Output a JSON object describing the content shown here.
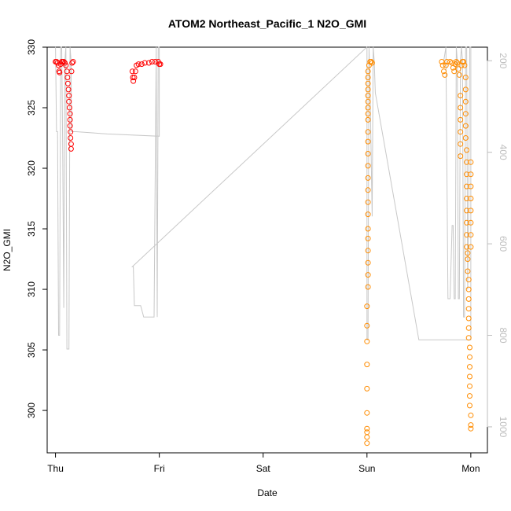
{
  "chart_data": {
    "type": "scatter",
    "title": "ATOM2 Northeast_Pacific_1 N2O_GMI",
    "xlabel": "Date",
    "ylabel": "N2O_GMI",
    "x_ticks": [
      "Thu",
      "Fri",
      "Sat",
      "Sun",
      "Mon"
    ],
    "xlim": [
      -0.08,
      4.16
    ],
    "ylim": [
      296.5,
      330
    ],
    "y_ticks": [
      300,
      305,
      310,
      315,
      320,
      325,
      330
    ],
    "y2_ticks": [
      200,
      400,
      600,
      800,
      1000
    ],
    "y2lim": [
      170.3,
      1056.8
    ],
    "grid": false,
    "series": [
      {
        "color": "#ff0000",
        "marker": "circle-open",
        "points": [
          [
            0.0,
            328.8
          ],
          [
            0.01,
            328.8
          ],
          [
            0.02,
            328.7
          ],
          [
            0.03,
            328.5
          ],
          [
            0.035,
            328.0
          ],
          [
            0.04,
            327.9
          ],
          [
            0.05,
            328.6
          ],
          [
            0.06,
            328.8
          ],
          [
            0.07,
            328.8
          ],
          [
            0.08,
            328.8
          ],
          [
            0.09,
            328.7
          ],
          [
            0.1,
            328.5
          ],
          [
            0.11,
            328.0
          ],
          [
            0.115,
            327.5
          ],
          [
            0.12,
            327.0
          ],
          [
            0.125,
            326.5
          ],
          [
            0.13,
            326.0
          ],
          [
            0.13,
            325.5
          ],
          [
            0.135,
            325.0
          ],
          [
            0.14,
            324.5
          ],
          [
            0.14,
            324.0
          ],
          [
            0.14,
            323.5
          ],
          [
            0.145,
            323.0
          ],
          [
            0.145,
            322.5
          ],
          [
            0.15,
            322.0
          ],
          [
            0.15,
            321.6
          ],
          [
            0.155,
            328.0
          ],
          [
            0.16,
            328.7
          ],
          [
            0.17,
            328.8
          ],
          [
            0.74,
            328.0
          ],
          [
            0.745,
            327.5
          ],
          [
            0.75,
            327.2
          ],
          [
            0.76,
            327.5
          ],
          [
            0.77,
            328.0
          ],
          [
            0.78,
            328.5
          ],
          [
            0.8,
            328.6
          ],
          [
            0.83,
            328.6
          ],
          [
            0.86,
            328.7
          ],
          [
            0.9,
            328.7
          ],
          [
            0.93,
            328.8
          ],
          [
            0.96,
            328.8
          ],
          [
            0.99,
            328.8
          ],
          [
            1.0,
            328.6
          ],
          [
            1.01,
            328.6
          ]
        ]
      },
      {
        "color": "#ff8c00",
        "marker": "circle-open",
        "points": [
          [
            3.0,
            297.3
          ],
          [
            3.0,
            297.8
          ],
          [
            3.0,
            298.2
          ],
          [
            3.0,
            298.5
          ],
          [
            3.0,
            299.8
          ],
          [
            3.0,
            301.8
          ],
          [
            3.0,
            303.8
          ],
          [
            3.0,
            305.7
          ],
          [
            3.0,
            307.0
          ],
          [
            3.0,
            308.6
          ],
          [
            3.01,
            310.2
          ],
          [
            3.01,
            311.2
          ],
          [
            3.01,
            312.2
          ],
          [
            3.01,
            313.2
          ],
          [
            3.01,
            314.2
          ],
          [
            3.01,
            315.0
          ],
          [
            3.01,
            316.2
          ],
          [
            3.01,
            317.2
          ],
          [
            3.01,
            318.2
          ],
          [
            3.01,
            319.2
          ],
          [
            3.01,
            320.2
          ],
          [
            3.01,
            321.2
          ],
          [
            3.01,
            322.2
          ],
          [
            3.01,
            323.0
          ],
          [
            3.01,
            324.0
          ],
          [
            3.01,
            324.5
          ],
          [
            3.01,
            325.0
          ],
          [
            3.01,
            325.5
          ],
          [
            3.01,
            326.0
          ],
          [
            3.01,
            326.5
          ],
          [
            3.01,
            327.0
          ],
          [
            3.01,
            327.5
          ],
          [
            3.01,
            328.0
          ],
          [
            3.02,
            328.5
          ],
          [
            3.03,
            328.8
          ],
          [
            3.04,
            328.8
          ],
          [
            3.05,
            328.7
          ],
          [
            3.72,
            328.8
          ],
          [
            3.73,
            328.5
          ],
          [
            3.74,
            328.0
          ],
          [
            3.75,
            327.7
          ],
          [
            3.76,
            328.5
          ],
          [
            3.77,
            328.8
          ],
          [
            3.8,
            328.8
          ],
          [
            3.82,
            328.7
          ],
          [
            3.83,
            328.3
          ],
          [
            3.84,
            328.0
          ],
          [
            3.85,
            328.6
          ],
          [
            3.86,
            328.8
          ],
          [
            3.87,
            328.7
          ],
          [
            3.88,
            328.2
          ],
          [
            3.89,
            327.7
          ],
          [
            3.9,
            326.0
          ],
          [
            3.9,
            325.0
          ],
          [
            3.9,
            324.0
          ],
          [
            3.9,
            323.0
          ],
          [
            3.9,
            322.0
          ],
          [
            3.9,
            321.0
          ],
          [
            3.91,
            328.5
          ],
          [
            3.92,
            328.8
          ],
          [
            3.93,
            328.8
          ],
          [
            3.94,
            328.5
          ],
          [
            3.95,
            327.5
          ],
          [
            3.95,
            326.5
          ],
          [
            3.95,
            325.5
          ],
          [
            3.95,
            324.5
          ],
          [
            3.95,
            323.5
          ],
          [
            3.95,
            322.5
          ],
          [
            3.96,
            321.5
          ],
          [
            3.96,
            320.5
          ],
          [
            3.96,
            319.5
          ],
          [
            3.96,
            318.5
          ],
          [
            3.96,
            317.5
          ],
          [
            3.96,
            316.5
          ],
          [
            3.96,
            315.5
          ],
          [
            3.96,
            314.5
          ],
          [
            3.96,
            313.5
          ],
          [
            3.97,
            313.0
          ],
          [
            3.97,
            312.5
          ],
          [
            3.97,
            311.5
          ],
          [
            3.98,
            310.8
          ],
          [
            3.98,
            310.0
          ],
          [
            3.98,
            309.2
          ],
          [
            3.98,
            308.4
          ],
          [
            3.98,
            307.6
          ],
          [
            3.98,
            306.8
          ],
          [
            3.98,
            306.0
          ],
          [
            3.99,
            305.2
          ],
          [
            3.99,
            304.4
          ],
          [
            3.99,
            303.6
          ],
          [
            3.99,
            302.8
          ],
          [
            3.99,
            302.0
          ],
          [
            3.99,
            301.2
          ],
          [
            3.99,
            300.4
          ],
          [
            4.0,
            299.6
          ],
          [
            4.0,
            298.8
          ],
          [
            4.0,
            298.5
          ],
          [
            4.0,
            320.5
          ],
          [
            4.0,
            319.5
          ],
          [
            4.0,
            318.5
          ],
          [
            4.0,
            317.5
          ],
          [
            4.0,
            316.5
          ],
          [
            4.0,
            315.5
          ],
          [
            4.0,
            314.5
          ],
          [
            4.0,
            313.5
          ]
        ]
      },
      {
        "color": "#c8c8c8",
        "marker": "line",
        "axis": "right",
        "points": [
          [
            0.0,
            170
          ],
          [
            0.01,
            355
          ],
          [
            0.02,
            355
          ],
          [
            0.03,
            800
          ],
          [
            0.04,
            800
          ],
          [
            0.05,
            170
          ],
          [
            0.06,
            170
          ],
          [
            0.07,
            400
          ],
          [
            0.08,
            740
          ],
          [
            0.09,
            200
          ],
          [
            0.1,
            170
          ],
          [
            0.11,
            830
          ],
          [
            0.12,
            830
          ],
          [
            0.13,
            830
          ],
          [
            0.14,
            170
          ],
          [
            0.15,
            200
          ],
          [
            0.155,
            355
          ],
          [
            0.2,
            355
          ],
          [
            0.5,
            360
          ],
          [
            1.0,
            365
          ],
          [
            1.0,
            170
          ],
          [
            0.99,
            170
          ],
          [
            0.98,
            760
          ],
          [
            0.97,
            170
          ],
          [
            0.95,
            760
          ],
          [
            0.93,
            760
          ],
          [
            0.9,
            760
          ],
          [
            0.85,
            760
          ],
          [
            0.82,
            735
          ],
          [
            0.8,
            735
          ],
          [
            0.78,
            735
          ],
          [
            0.76,
            735
          ],
          [
            0.75,
            650
          ],
          [
            0.74,
            650
          ],
          [
            3.0,
            170
          ],
          [
            3.0,
            810
          ],
          [
            3.01,
            810
          ],
          [
            3.02,
            170
          ],
          [
            3.03,
            270
          ],
          [
            3.05,
            540
          ],
          [
            3.06,
            170
          ],
          [
            3.07,
            200
          ],
          [
            3.08,
            270
          ],
          [
            3.5,
            810
          ],
          [
            4.0,
            810
          ],
          [
            4.0,
            170
          ],
          [
            3.99,
            170
          ],
          [
            3.98,
            500
          ],
          [
            3.97,
            700
          ],
          [
            3.96,
            170
          ],
          [
            3.95,
            170
          ],
          [
            3.94,
            760
          ],
          [
            3.93,
            760
          ],
          [
            3.92,
            200
          ],
          [
            3.91,
            170
          ],
          [
            3.9,
            200
          ],
          [
            3.89,
            720
          ],
          [
            3.88,
            720
          ],
          [
            3.87,
            200
          ],
          [
            3.86,
            170
          ],
          [
            3.85,
            720
          ],
          [
            3.84,
            720
          ],
          [
            3.83,
            560
          ],
          [
            3.82,
            560
          ],
          [
            3.8,
            720
          ],
          [
            3.78,
            720
          ],
          [
            3.76,
            170
          ],
          [
            3.74,
            200
          ]
        ]
      }
    ]
  }
}
